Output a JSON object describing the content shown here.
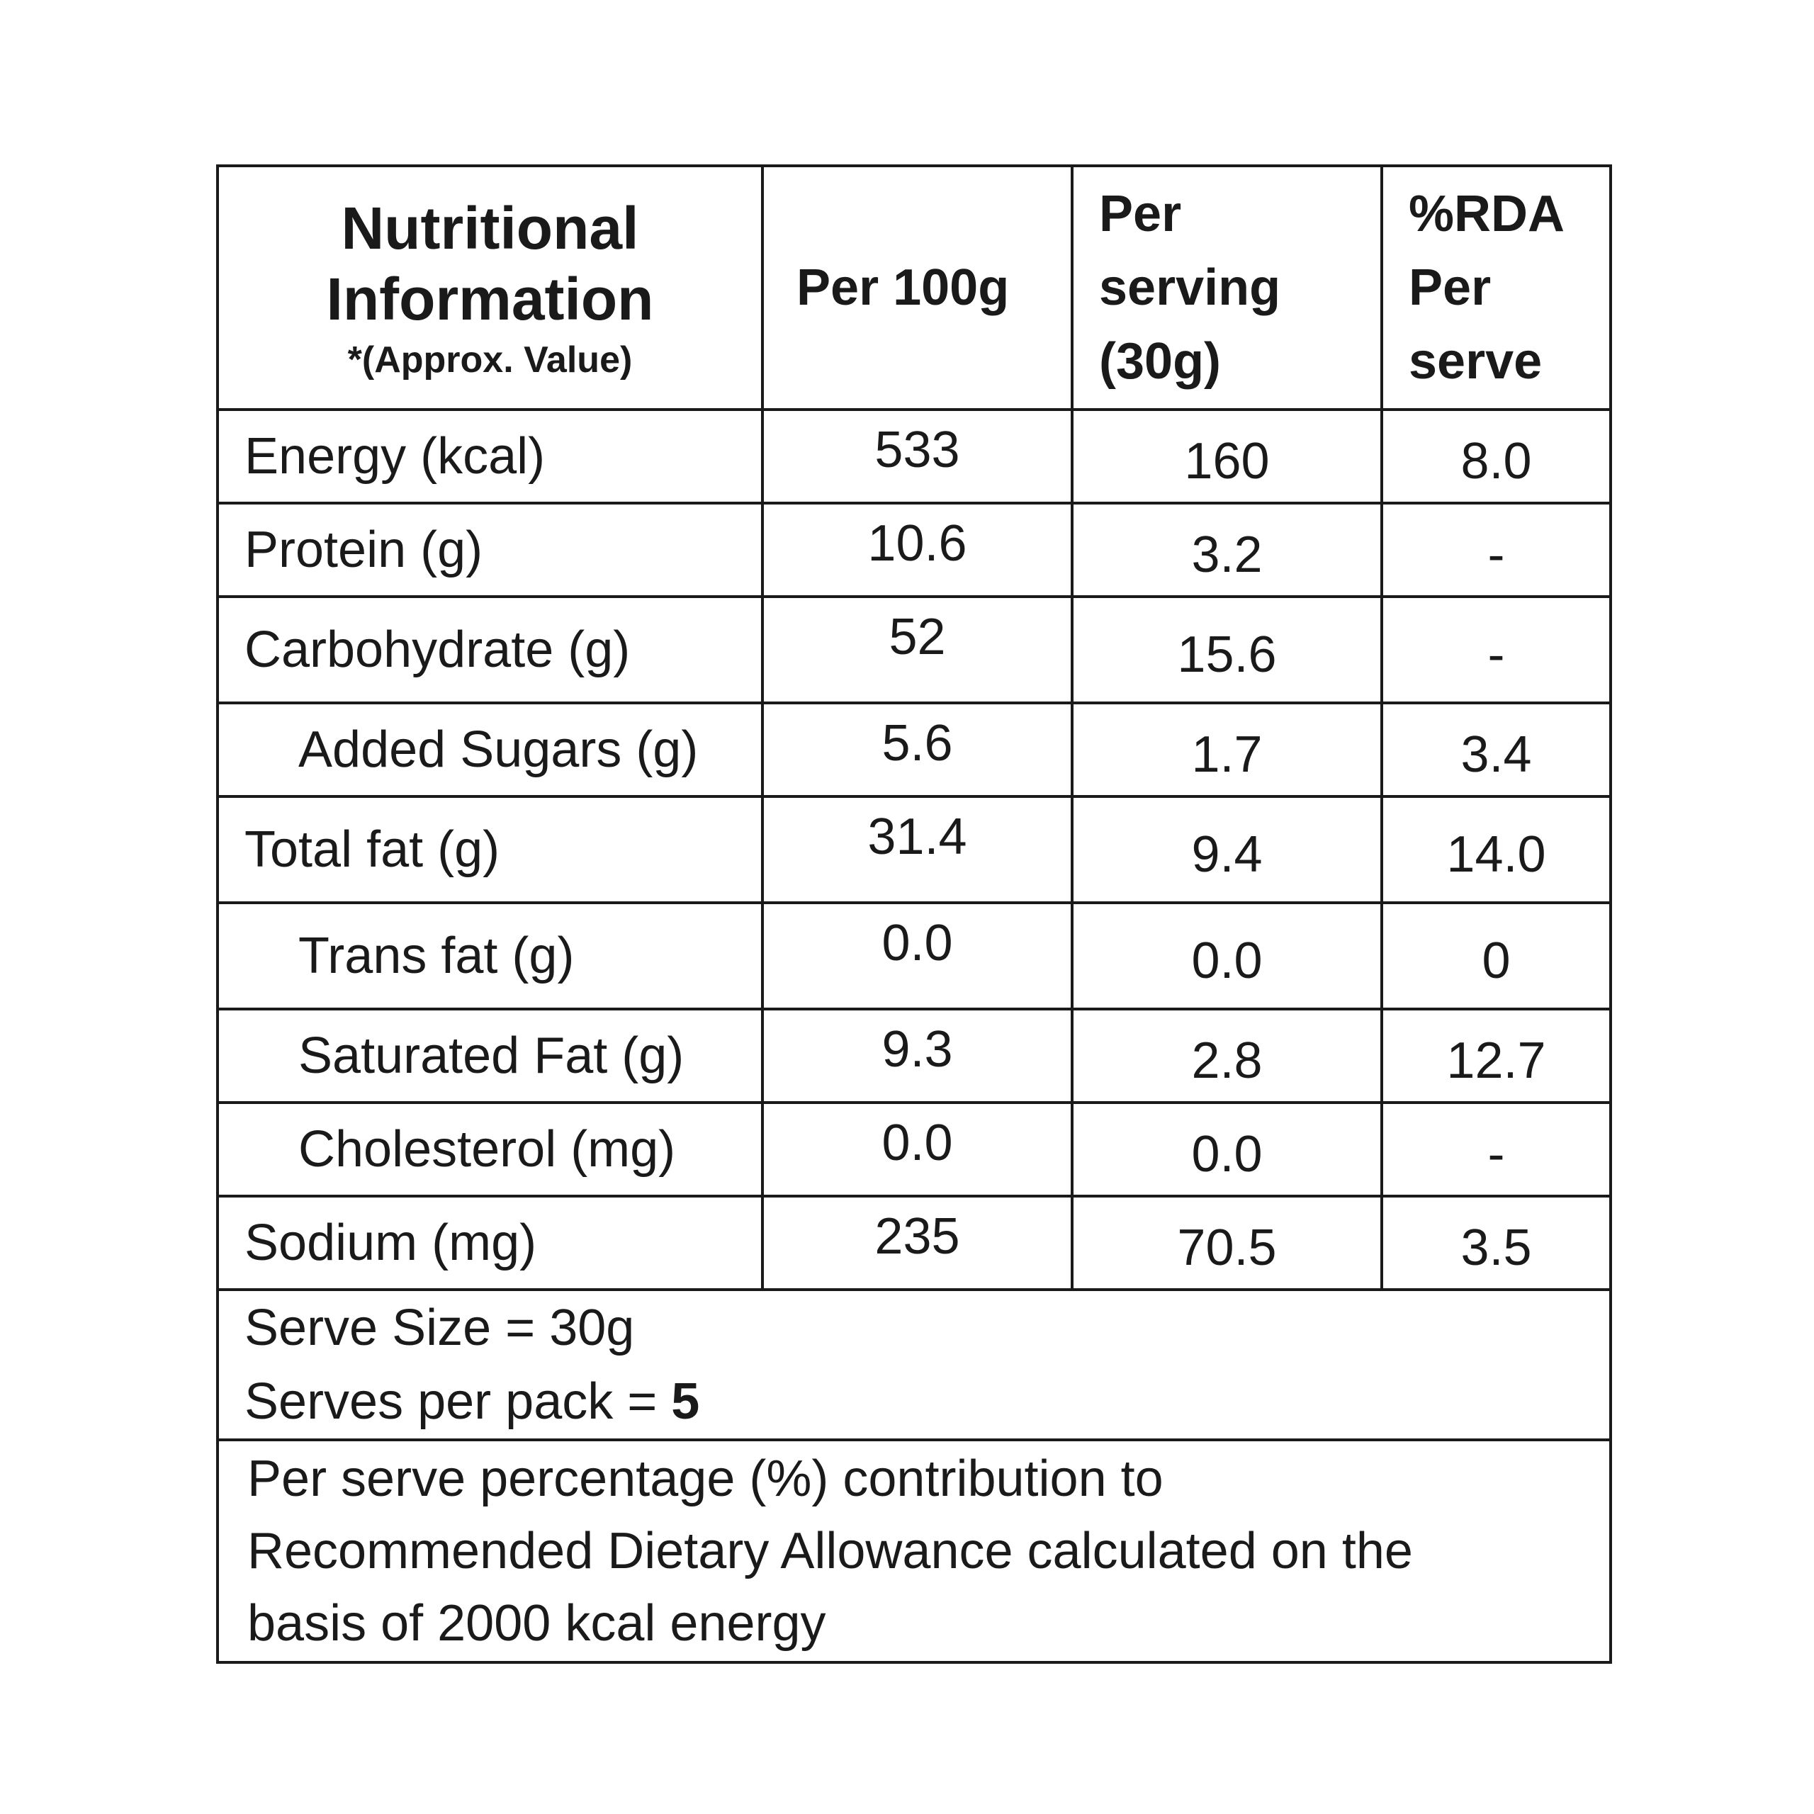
{
  "header": {
    "title_line1": "Nutritional",
    "title_line2": "Information",
    "note": "*(Approx. Value)",
    "col_per100": "Per 100g",
    "col_serving": "Per\nserving\n(30g)",
    "col_rda": "%RDA\nPer\nserve"
  },
  "rows": [
    {
      "name": "Energy (kcal)",
      "per100": "533",
      "serving": "160",
      "rda": "8.0"
    },
    {
      "name": "Protein (g)",
      "per100": "10.6",
      "serving": "3.2",
      "rda": "-"
    },
    {
      "name": "Carbohydrate (g)",
      "per100": "52",
      "serving": "15.6",
      "rda": "-"
    },
    {
      "name": "Added Sugars (g)",
      "per100": "5.6",
      "serving": "1.7",
      "rda": "3.4"
    },
    {
      "name": "Total fat (g)",
      "per100": "31.4",
      "serving": "9.4",
      "rda": "14.0"
    },
    {
      "name": "Trans fat (g)",
      "per100": "0.0",
      "serving": "0.0",
      "rda": "0"
    },
    {
      "name": "Saturated Fat (g)",
      "per100": "9.3",
      "serving": "2.8",
      "rda": "12.7"
    },
    {
      "name": "Cholesterol (mg)",
      "per100": "0.0",
      "serving": "0.0",
      "rda": "-"
    },
    {
      "name": "Sodium (mg)",
      "per100": "235",
      "serving": "70.5",
      "rda": "3.5"
    }
  ],
  "serve_info": {
    "serve_size": "Serve Size = 30g",
    "serves_per_pack_label": "Serves per pack = ",
    "serves_per_pack_value": "5"
  },
  "footnote": {
    "line1": "Per serve percentage (%) contribution to",
    "line2": "Recommended Dietary Allowance calculated on the",
    "line3": "basis of 2000  kcal energy"
  }
}
